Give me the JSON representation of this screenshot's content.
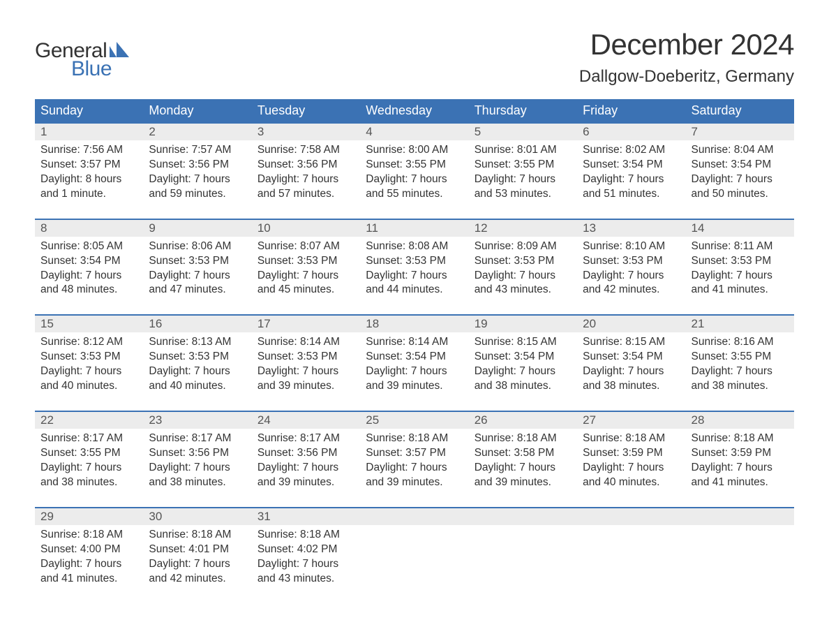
{
  "logo": {
    "text_general": "General",
    "text_blue": "Blue",
    "mark_color": "#3b72b4",
    "general_color": "#333333"
  },
  "title": {
    "month": "December 2024",
    "location": "Dallgow-Doeberitz, Germany"
  },
  "colors": {
    "header_bg": "#3b72b4",
    "header_text": "#ffffff",
    "daynum_bg": "#ececec",
    "daynum_text": "#555555",
    "body_text": "#333333",
    "week_border": "#3b72b4",
    "page_bg": "#ffffff"
  },
  "typography": {
    "month_title_size_pt": 32,
    "location_size_pt": 18,
    "dow_size_pt": 14,
    "daynum_size_pt": 13,
    "daydata_size_pt": 12,
    "font_family": "Arial"
  },
  "days_of_week": [
    "Sunday",
    "Monday",
    "Tuesday",
    "Wednesday",
    "Thursday",
    "Friday",
    "Saturday"
  ],
  "weeks": [
    [
      {
        "num": "1",
        "sunrise": "Sunrise: 7:56 AM",
        "sunset": "Sunset: 3:57 PM",
        "dl1": "Daylight: 8 hours",
        "dl2": "and 1 minute."
      },
      {
        "num": "2",
        "sunrise": "Sunrise: 7:57 AM",
        "sunset": "Sunset: 3:56 PM",
        "dl1": "Daylight: 7 hours",
        "dl2": "and 59 minutes."
      },
      {
        "num": "3",
        "sunrise": "Sunrise: 7:58 AM",
        "sunset": "Sunset: 3:56 PM",
        "dl1": "Daylight: 7 hours",
        "dl2": "and 57 minutes."
      },
      {
        "num": "4",
        "sunrise": "Sunrise: 8:00 AM",
        "sunset": "Sunset: 3:55 PM",
        "dl1": "Daylight: 7 hours",
        "dl2": "and 55 minutes."
      },
      {
        "num": "5",
        "sunrise": "Sunrise: 8:01 AM",
        "sunset": "Sunset: 3:55 PM",
        "dl1": "Daylight: 7 hours",
        "dl2": "and 53 minutes."
      },
      {
        "num": "6",
        "sunrise": "Sunrise: 8:02 AM",
        "sunset": "Sunset: 3:54 PM",
        "dl1": "Daylight: 7 hours",
        "dl2": "and 51 minutes."
      },
      {
        "num": "7",
        "sunrise": "Sunrise: 8:04 AM",
        "sunset": "Sunset: 3:54 PM",
        "dl1": "Daylight: 7 hours",
        "dl2": "and 50 minutes."
      }
    ],
    [
      {
        "num": "8",
        "sunrise": "Sunrise: 8:05 AM",
        "sunset": "Sunset: 3:54 PM",
        "dl1": "Daylight: 7 hours",
        "dl2": "and 48 minutes."
      },
      {
        "num": "9",
        "sunrise": "Sunrise: 8:06 AM",
        "sunset": "Sunset: 3:53 PM",
        "dl1": "Daylight: 7 hours",
        "dl2": "and 47 minutes."
      },
      {
        "num": "10",
        "sunrise": "Sunrise: 8:07 AM",
        "sunset": "Sunset: 3:53 PM",
        "dl1": "Daylight: 7 hours",
        "dl2": "and 45 minutes."
      },
      {
        "num": "11",
        "sunrise": "Sunrise: 8:08 AM",
        "sunset": "Sunset: 3:53 PM",
        "dl1": "Daylight: 7 hours",
        "dl2": "and 44 minutes."
      },
      {
        "num": "12",
        "sunrise": "Sunrise: 8:09 AM",
        "sunset": "Sunset: 3:53 PM",
        "dl1": "Daylight: 7 hours",
        "dl2": "and 43 minutes."
      },
      {
        "num": "13",
        "sunrise": "Sunrise: 8:10 AM",
        "sunset": "Sunset: 3:53 PM",
        "dl1": "Daylight: 7 hours",
        "dl2": "and 42 minutes."
      },
      {
        "num": "14",
        "sunrise": "Sunrise: 8:11 AM",
        "sunset": "Sunset: 3:53 PM",
        "dl1": "Daylight: 7 hours",
        "dl2": "and 41 minutes."
      }
    ],
    [
      {
        "num": "15",
        "sunrise": "Sunrise: 8:12 AM",
        "sunset": "Sunset: 3:53 PM",
        "dl1": "Daylight: 7 hours",
        "dl2": "and 40 minutes."
      },
      {
        "num": "16",
        "sunrise": "Sunrise: 8:13 AM",
        "sunset": "Sunset: 3:53 PM",
        "dl1": "Daylight: 7 hours",
        "dl2": "and 40 minutes."
      },
      {
        "num": "17",
        "sunrise": "Sunrise: 8:14 AM",
        "sunset": "Sunset: 3:53 PM",
        "dl1": "Daylight: 7 hours",
        "dl2": "and 39 minutes."
      },
      {
        "num": "18",
        "sunrise": "Sunrise: 8:14 AM",
        "sunset": "Sunset: 3:54 PM",
        "dl1": "Daylight: 7 hours",
        "dl2": "and 39 minutes."
      },
      {
        "num": "19",
        "sunrise": "Sunrise: 8:15 AM",
        "sunset": "Sunset: 3:54 PM",
        "dl1": "Daylight: 7 hours",
        "dl2": "and 38 minutes."
      },
      {
        "num": "20",
        "sunrise": "Sunrise: 8:15 AM",
        "sunset": "Sunset: 3:54 PM",
        "dl1": "Daylight: 7 hours",
        "dl2": "and 38 minutes."
      },
      {
        "num": "21",
        "sunrise": "Sunrise: 8:16 AM",
        "sunset": "Sunset: 3:55 PM",
        "dl1": "Daylight: 7 hours",
        "dl2": "and 38 minutes."
      }
    ],
    [
      {
        "num": "22",
        "sunrise": "Sunrise: 8:17 AM",
        "sunset": "Sunset: 3:55 PM",
        "dl1": "Daylight: 7 hours",
        "dl2": "and 38 minutes."
      },
      {
        "num": "23",
        "sunrise": "Sunrise: 8:17 AM",
        "sunset": "Sunset: 3:56 PM",
        "dl1": "Daylight: 7 hours",
        "dl2": "and 38 minutes."
      },
      {
        "num": "24",
        "sunrise": "Sunrise: 8:17 AM",
        "sunset": "Sunset: 3:56 PM",
        "dl1": "Daylight: 7 hours",
        "dl2": "and 39 minutes."
      },
      {
        "num": "25",
        "sunrise": "Sunrise: 8:18 AM",
        "sunset": "Sunset: 3:57 PM",
        "dl1": "Daylight: 7 hours",
        "dl2": "and 39 minutes."
      },
      {
        "num": "26",
        "sunrise": "Sunrise: 8:18 AM",
        "sunset": "Sunset: 3:58 PM",
        "dl1": "Daylight: 7 hours",
        "dl2": "and 39 minutes."
      },
      {
        "num": "27",
        "sunrise": "Sunrise: 8:18 AM",
        "sunset": "Sunset: 3:59 PM",
        "dl1": "Daylight: 7 hours",
        "dl2": "and 40 minutes."
      },
      {
        "num": "28",
        "sunrise": "Sunrise: 8:18 AM",
        "sunset": "Sunset: 3:59 PM",
        "dl1": "Daylight: 7 hours",
        "dl2": "and 41 minutes."
      }
    ],
    [
      {
        "num": "29",
        "sunrise": "Sunrise: 8:18 AM",
        "sunset": "Sunset: 4:00 PM",
        "dl1": "Daylight: 7 hours",
        "dl2": "and 41 minutes."
      },
      {
        "num": "30",
        "sunrise": "Sunrise: 8:18 AM",
        "sunset": "Sunset: 4:01 PM",
        "dl1": "Daylight: 7 hours",
        "dl2": "and 42 minutes."
      },
      {
        "num": "31",
        "sunrise": "Sunrise: 8:18 AM",
        "sunset": "Sunset: 4:02 PM",
        "dl1": "Daylight: 7 hours",
        "dl2": "and 43 minutes."
      },
      null,
      null,
      null,
      null
    ]
  ]
}
